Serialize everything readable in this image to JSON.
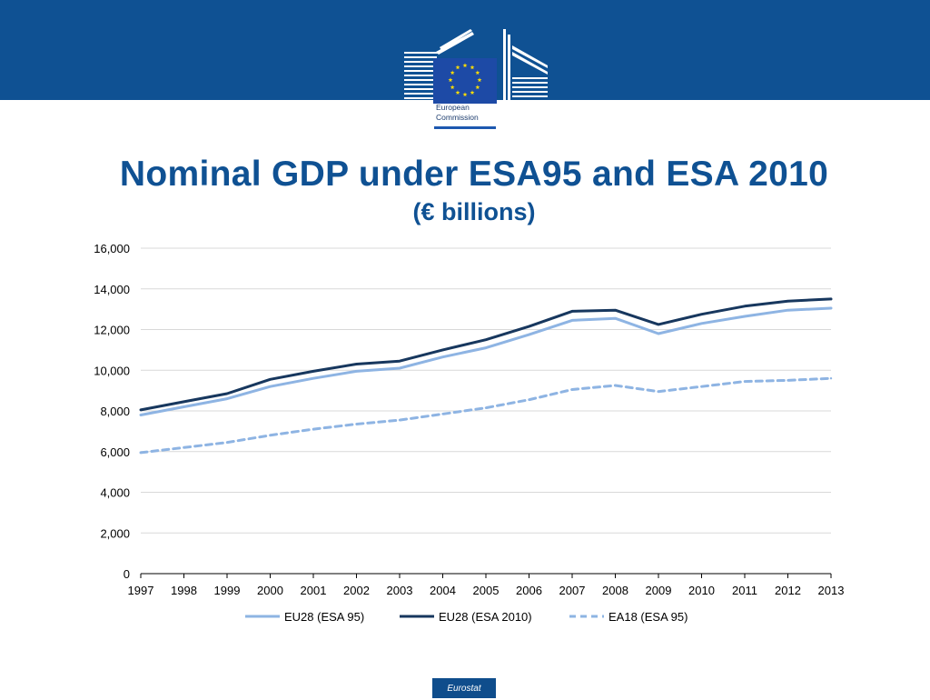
{
  "header": {
    "logo_name": "European Commission",
    "logo_line1": "European",
    "logo_line2": "Commission"
  },
  "title": "Nominal GDP under ESA95 and ESA 2010",
  "subtitle": "(€ billions)",
  "colors": {
    "band": "#0f5193",
    "series_light": "#8eb4e3",
    "series_dark": "#17375e",
    "series_dashed": "#8eb4e3"
  },
  "chart_data": {
    "type": "line",
    "title": "Nominal GDP under ESA95 and ESA 2010",
    "subtitle": "(€ billions)",
    "categories": [
      "1997",
      "1998",
      "1999",
      "2000",
      "2001",
      "2002",
      "2003",
      "2004",
      "2005",
      "2006",
      "2007",
      "2008",
      "2009",
      "2010",
      "2011",
      "2012",
      "2013"
    ],
    "y_ticks": [
      "0",
      "2,000",
      "4,000",
      "6,000",
      "8,000",
      "10,000",
      "12,000",
      "14,000",
      "16,000"
    ],
    "ylim": [
      0,
      16000
    ],
    "grid": true,
    "legend_position": "bottom",
    "series": [
      {
        "name": "EU28 (ESA 95)",
        "style": "solid-light",
        "values": [
          7800,
          8200,
          8600,
          9200,
          9600,
          9950,
          10100,
          10650,
          11100,
          11750,
          12450,
          12550,
          11800,
          12300,
          12650,
          12950,
          13050
        ]
      },
      {
        "name": "EU28 (ESA 2010)",
        "style": "solid-dark",
        "values": [
          8050,
          8450,
          8850,
          9550,
          9950,
          10300,
          10450,
          11000,
          11500,
          12150,
          12900,
          12950,
          12250,
          12750,
          13150,
          13400,
          13500
        ]
      },
      {
        "name": "EA18 (ESA 95)",
        "style": "dashed-light",
        "values": [
          5950,
          6200,
          6450,
          6800,
          7100,
          7350,
          7550,
          7850,
          8150,
          8550,
          9050,
          9250,
          8950,
          9200,
          9450,
          9500,
          9600
        ]
      }
    ]
  },
  "footer": {
    "badge": "Eurostat"
  }
}
